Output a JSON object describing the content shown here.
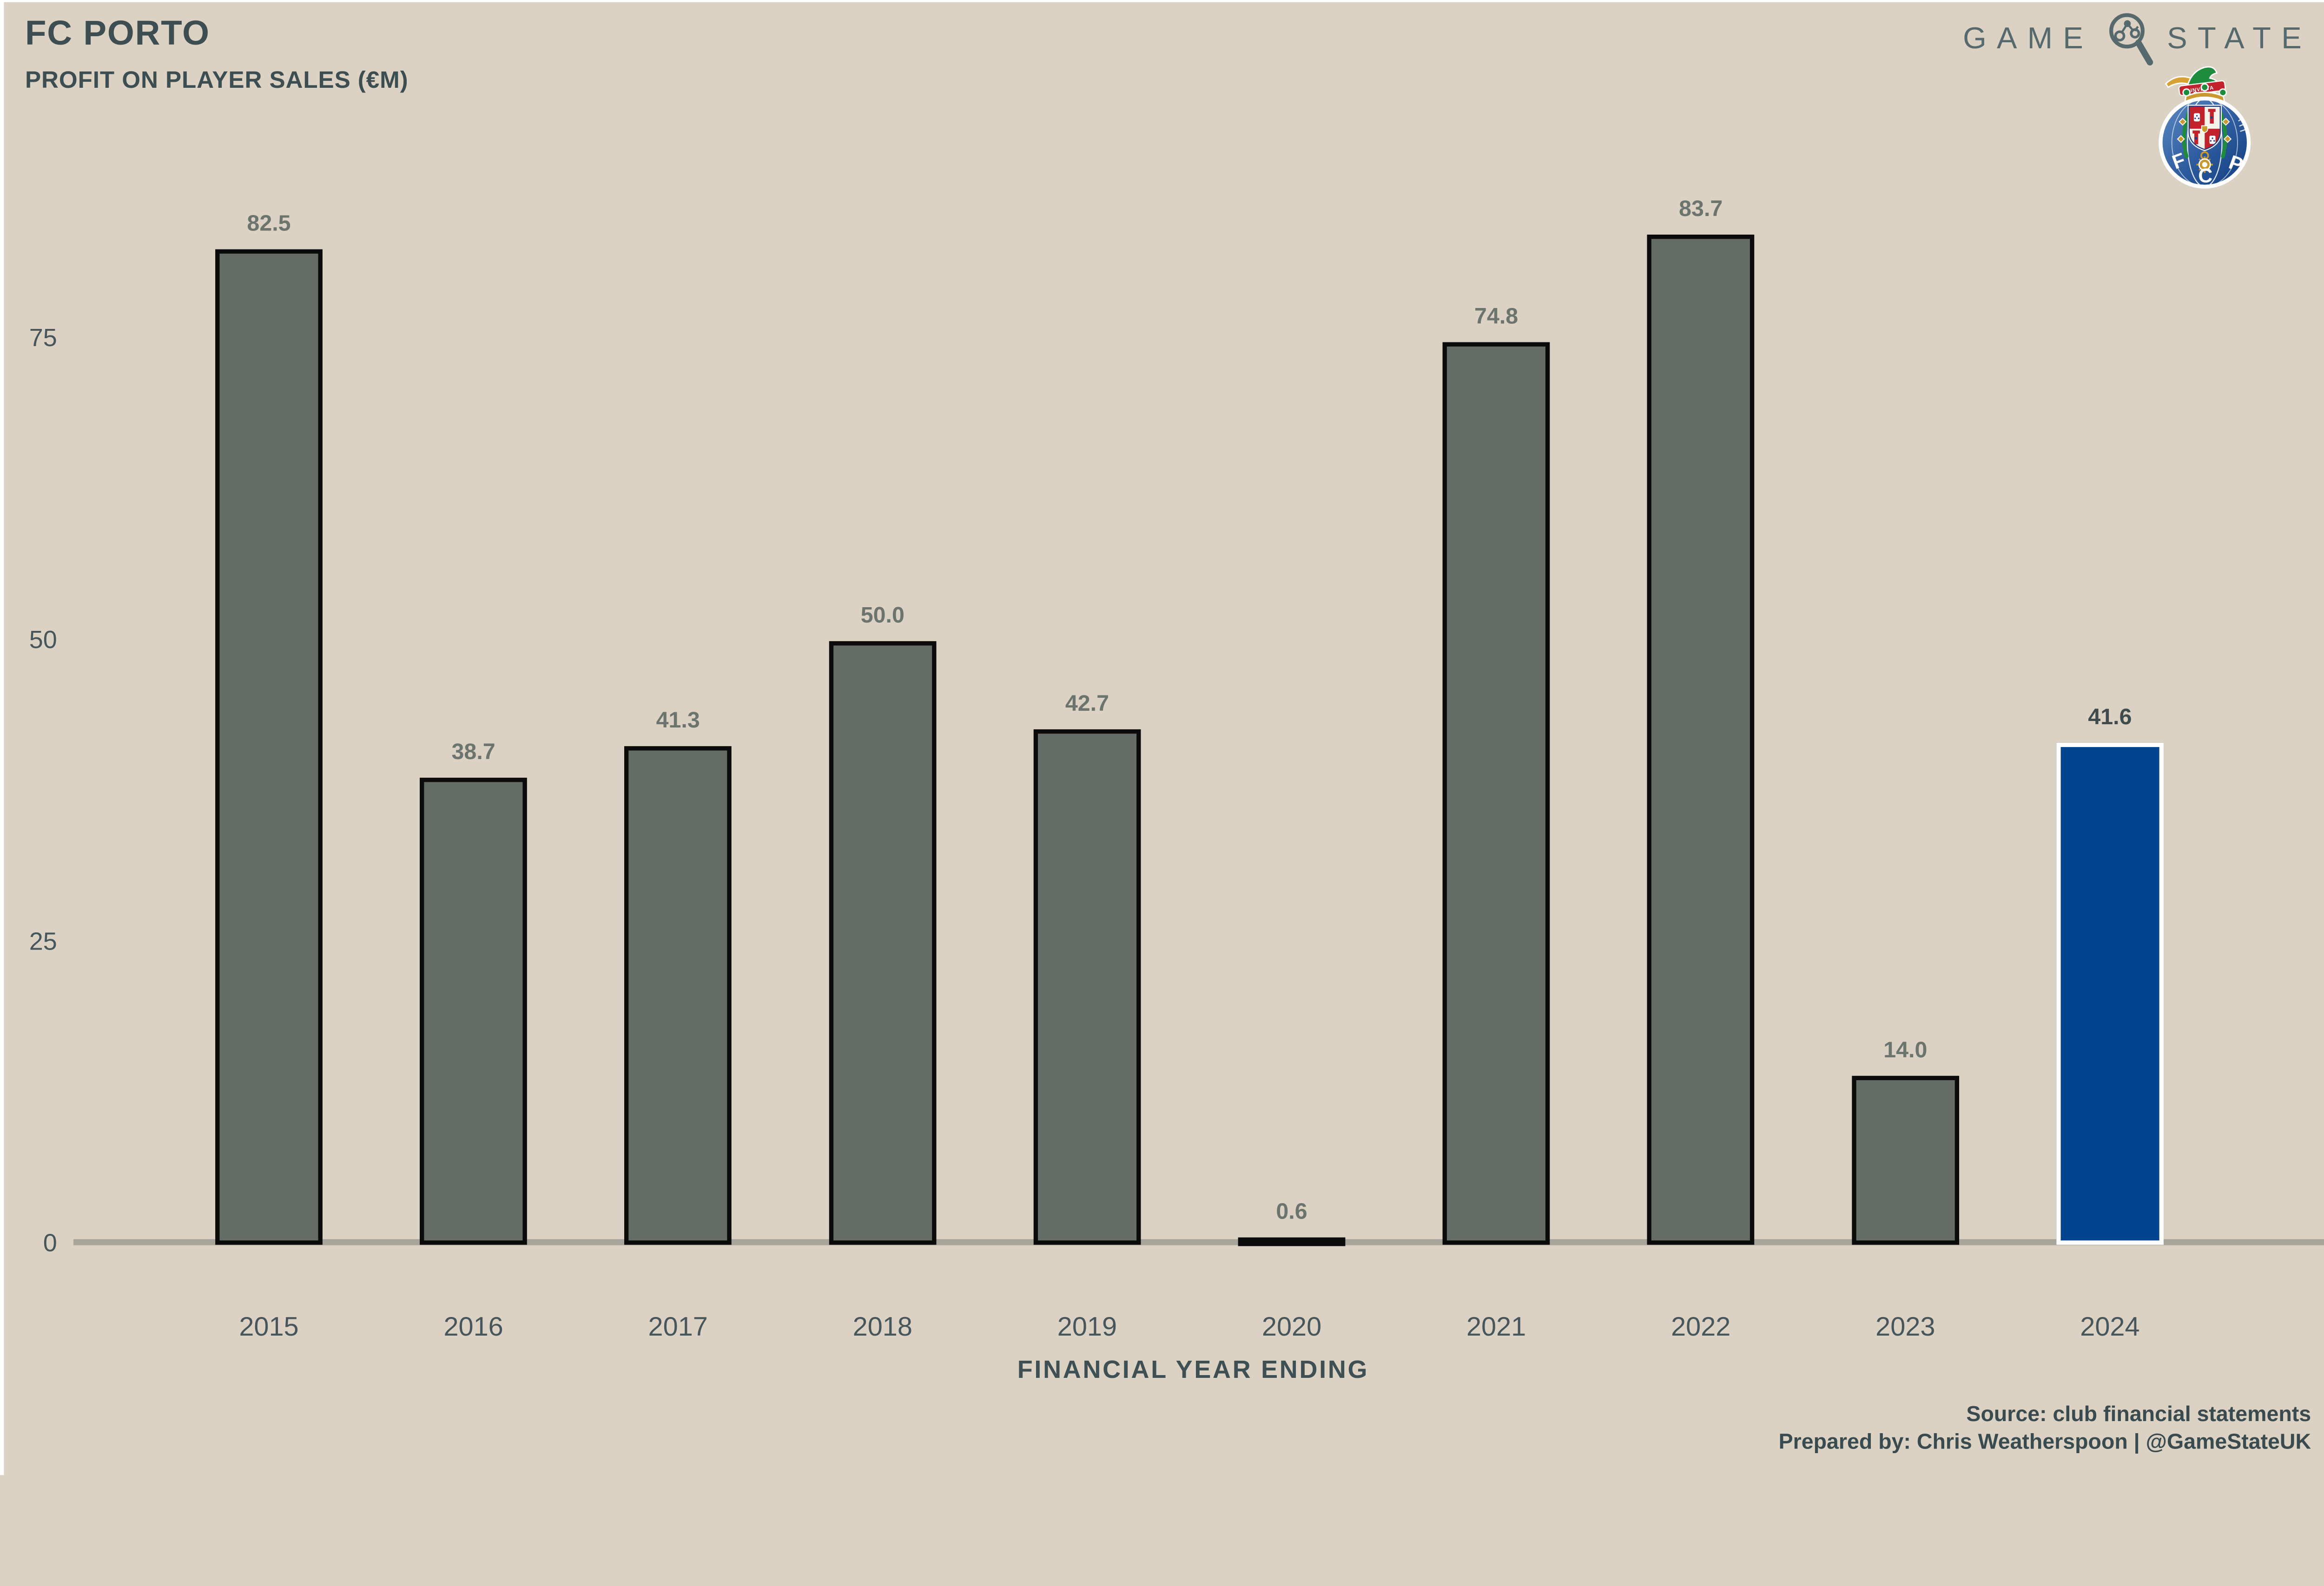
{
  "page": {
    "background": "#DCD2C3"
  },
  "header": {
    "title": "FC PORTO",
    "subtitle": "PROFIT ON PLAYER SALES (€M)"
  },
  "brand": {
    "name_left": "GAME",
    "name_right": "STATE",
    "icon": "magnifier-network-icon",
    "text_color": "#566A6E",
    "crest": {
      "club": "FC Porto",
      "letters": "FCP",
      "motto": "INVICTA"
    }
  },
  "chart_data": {
    "type": "bar",
    "title": "FC PORTO",
    "subtitle": "PROFIT ON PLAYER SALES (€M)",
    "xlabel": "FINANCIAL YEAR ENDING",
    "ylabel": "",
    "categories": [
      "2015",
      "2016",
      "2017",
      "2018",
      "2019",
      "2020",
      "2021",
      "2022",
      "2023",
      "2024"
    ],
    "values": [
      82.5,
      38.7,
      41.3,
      50.0,
      42.7,
      0.6,
      74.8,
      83.7,
      14.0,
      41.6
    ],
    "value_labels": [
      "82.5",
      "38.7",
      "41.3",
      "50.0",
      "42.7",
      "0.6",
      "74.8",
      "83.7",
      "14.0",
      "41.6"
    ],
    "yticks": [
      0,
      25,
      50,
      75
    ],
    "ylim": [
      0,
      86
    ],
    "grid": false,
    "legend": false,
    "highlight_category": "2024",
    "colors": {
      "bar": "#656C66",
      "bar_border": "#0B0B0B",
      "highlight": "#02448E",
      "highlight_border": "#FFFFFF",
      "axis_line": "#A7A49B",
      "value_label": "#6C746E",
      "highlight_value_label": "#3F4C4B",
      "tick_label": "#47565B"
    }
  },
  "footer": {
    "source": "Source: club financial statements",
    "prepared_by": "Prepared by: Chris Weatherspoon | @GameStateUK"
  }
}
